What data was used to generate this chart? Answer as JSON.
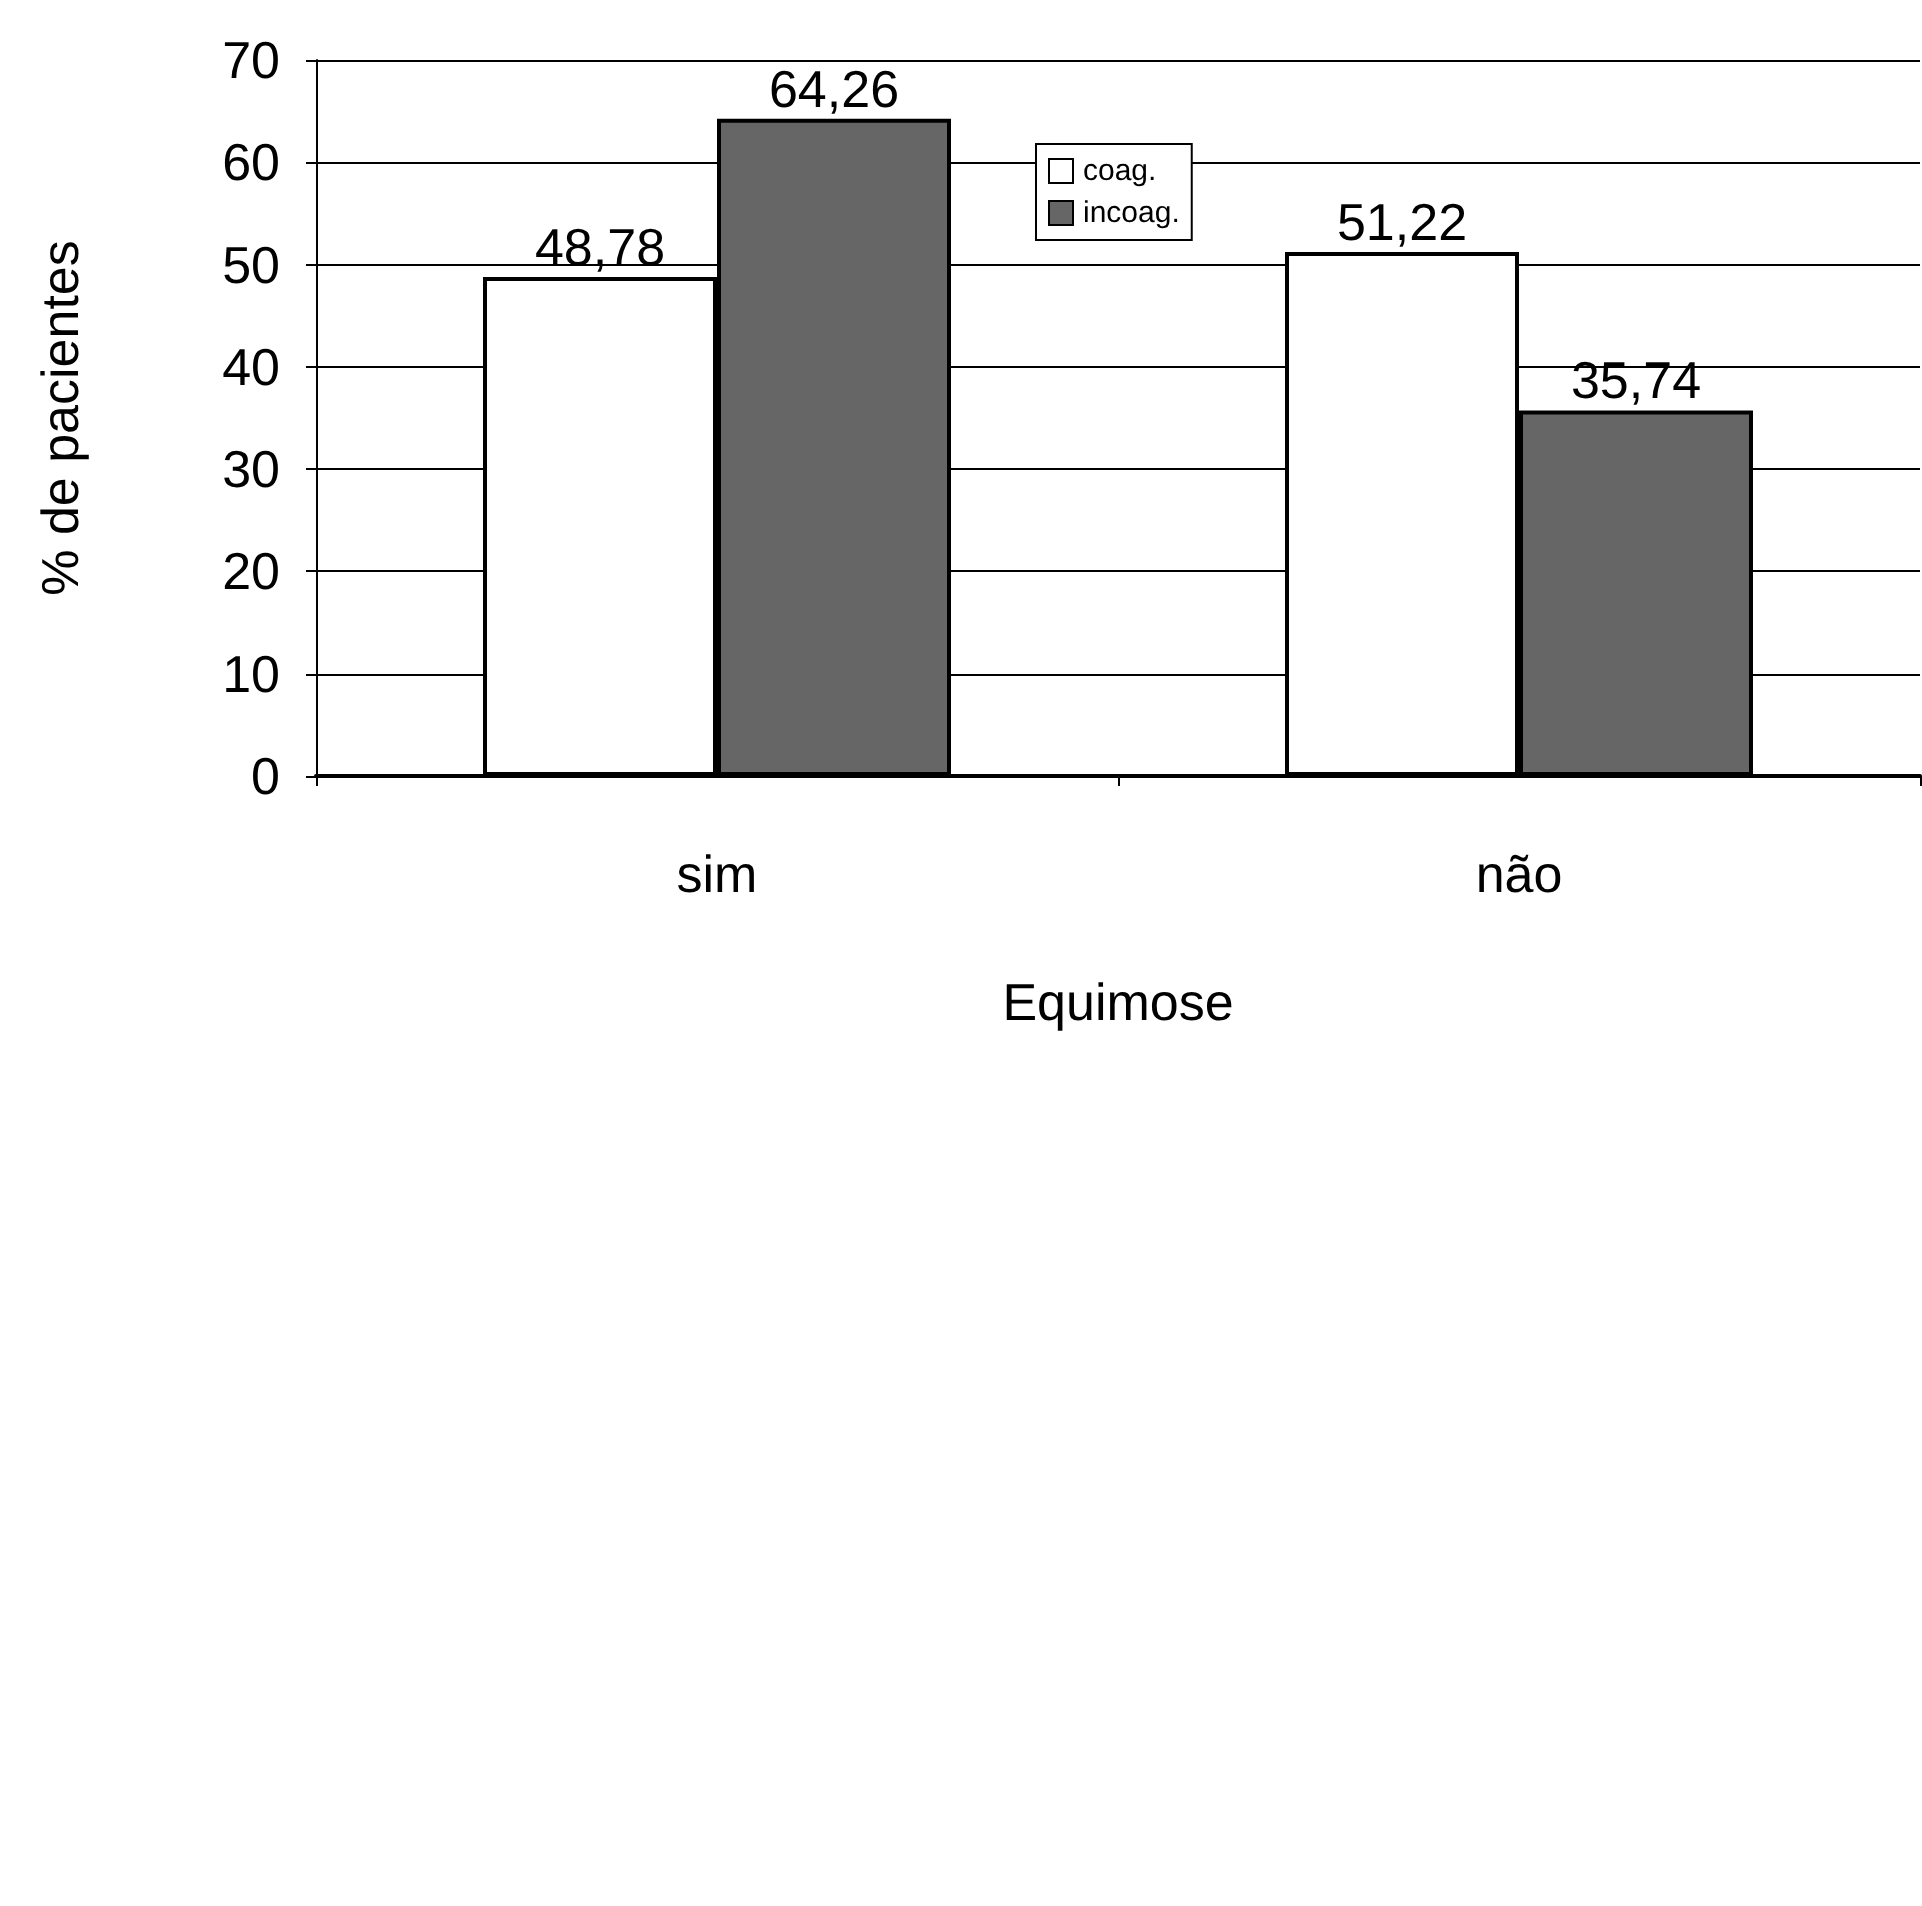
{
  "chart_data": {
    "type": "bar",
    "xlabel": "Equimose",
    "ylabel": "% de pacientes",
    "categories": [
      "sim",
      "não"
    ],
    "series": [
      {
        "name": "coag.",
        "color": "#ffffff",
        "values": [
          48.78,
          51.22
        ],
        "value_labels": [
          "48,78",
          "51,22"
        ]
      },
      {
        "name": "incoag.",
        "color": "#666666",
        "values": [
          64.26,
          35.74
        ],
        "value_labels": [
          "64,26",
          "35,74"
        ]
      }
    ],
    "ylim": [
      0,
      70
    ],
    "yticks": [
      0,
      10,
      20,
      30,
      40,
      50,
      60,
      70
    ],
    "grid": "y",
    "legend": "top"
  }
}
